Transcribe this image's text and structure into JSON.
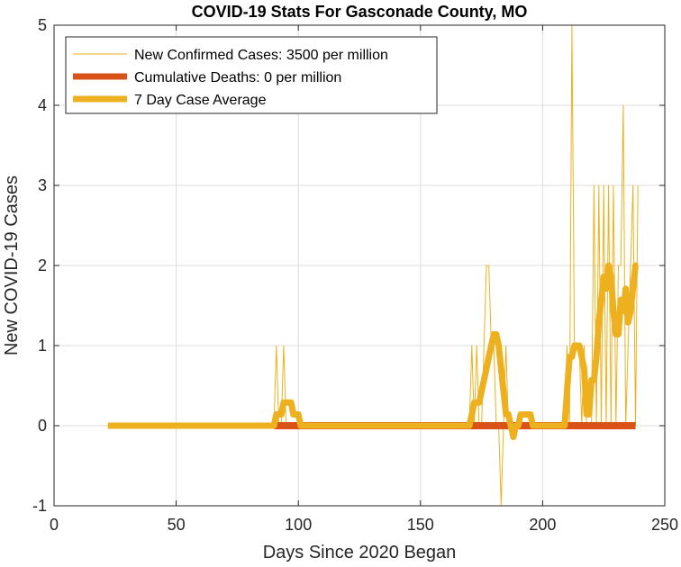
{
  "chart_data": {
    "type": "line",
    "title": "COVID-19 Stats For Gasconade County, MO",
    "xlabel": "Days Since 2020 Began",
    "ylabel": "New COVID-19 Cases",
    "xlim": [
      0,
      250
    ],
    "ylim": [
      -1,
      5
    ],
    "xticks": [
      0,
      50,
      100,
      150,
      200,
      250
    ],
    "yticks": [
      -1,
      0,
      1,
      2,
      3,
      4,
      5
    ],
    "grid": true,
    "legend_position": "top-left",
    "series": [
      {
        "name": "New Confirmed Cases: 3500 per million",
        "color": "#EDB120",
        "style": "thin",
        "x": [
          22,
          90,
          91,
          92,
          93,
          94,
          95,
          96,
          97,
          98,
          99,
          100,
          101,
          102,
          170,
          171,
          172,
          173,
          174,
          175,
          176,
          177,
          178,
          179,
          180,
          181,
          182,
          183,
          184,
          185,
          186,
          187,
          188,
          189,
          190,
          191,
          192,
          193,
          194,
          195,
          196,
          209,
          210,
          211,
          212,
          213,
          214,
          215,
          216,
          217,
          218,
          219,
          220,
          221,
          222,
          223,
          224,
          225,
          226,
          227,
          228,
          229,
          230,
          231,
          232,
          233,
          234,
          235,
          236,
          237,
          238,
          239
        ],
        "y": [
          0,
          0,
          1,
          0,
          0,
          1,
          0,
          0,
          0,
          0,
          0,
          0,
          0,
          0,
          0,
          1,
          0,
          1,
          0,
          0,
          1,
          2,
          2,
          1,
          1,
          0,
          0,
          -1,
          0,
          1,
          0,
          0,
          0,
          0,
          0,
          0,
          0,
          0,
          0,
          0,
          0,
          0,
          1,
          0,
          5,
          1,
          1,
          1,
          0,
          1,
          0,
          0,
          0,
          3,
          0,
          3,
          0,
          3,
          0,
          3,
          0,
          3,
          0,
          2,
          2,
          4,
          0,
          1,
          2,
          3,
          0,
          3
        ]
      },
      {
        "name": "Cumulative Deaths: 0 per million",
        "color": "#D95319",
        "style": "thick",
        "x": [
          90,
          238
        ],
        "y": [
          0,
          0
        ]
      },
      {
        "name": "7 Day Case Average",
        "color": "#EDB120",
        "style": "thick",
        "x": [
          22,
          90,
          91,
          92,
          93,
          94,
          95,
          96,
          97,
          98,
          99,
          100,
          101,
          102,
          103,
          170,
          171,
          172,
          173,
          174,
          175,
          176,
          177,
          178,
          179,
          180,
          181,
          182,
          183,
          184,
          185,
          186,
          187,
          188,
          189,
          190,
          191,
          192,
          193,
          194,
          195,
          196,
          197,
          209,
          210,
          211,
          212,
          213,
          214,
          215,
          216,
          217,
          218,
          219,
          220,
          221,
          222,
          223,
          224,
          225,
          226,
          227,
          228,
          229,
          230,
          231,
          232,
          233,
          234,
          235,
          236,
          237,
          238,
          239
        ],
        "y": [
          0,
          0,
          0.14,
          0.14,
          0.14,
          0.29,
          0.29,
          0.29,
          0.29,
          0.14,
          0.14,
          0.14,
          0,
          0,
          0,
          0,
          0.14,
          0.29,
          0.29,
          0.29,
          0.43,
          0.57,
          0.71,
          0.86,
          1.0,
          1.14,
          1.14,
          1.0,
          0.71,
          0.43,
          0.14,
          0.14,
          0,
          -0.14,
          0,
          0,
          0.14,
          0.14,
          0.14,
          0.14,
          0.14,
          0,
          0,
          0,
          0.43,
          0.86,
          0.86,
          1.0,
          1.0,
          1.0,
          0.86,
          0.71,
          0.14,
          0.14,
          0.57,
          0.57,
          0.86,
          1.29,
          1.57,
          1.86,
          1.71,
          2.0,
          1.86,
          1.43,
          1.14,
          1.14,
          1.57,
          1.43,
          1.71,
          1.29,
          1.43,
          1.71,
          2.0,
          2.0
        ]
      }
    ]
  }
}
